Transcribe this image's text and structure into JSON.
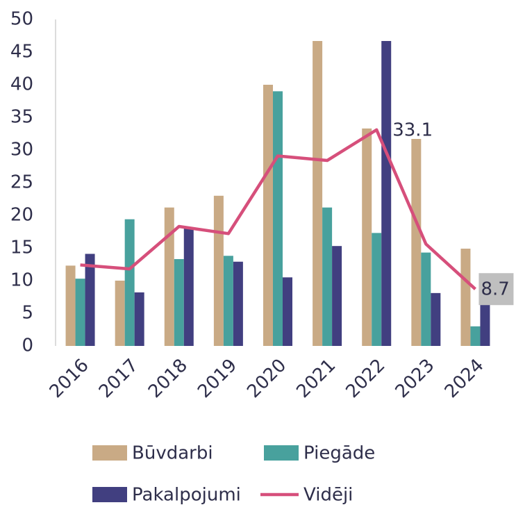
{
  "chart_data": {
    "type": "bar",
    "categories": [
      "2016",
      "2017",
      "2018",
      "2019",
      "2020",
      "2021",
      "2022",
      "2023",
      "2024"
    ],
    "series": [
      {
        "name": "Būvdarbi",
        "color": "#c9aa85",
        "values": [
          12.3,
          10.0,
          21.2,
          23.0,
          40.0,
          46.7,
          33.3,
          31.7,
          14.9
        ]
      },
      {
        "name": "Piegāde",
        "color": "#48a19d",
        "values": [
          10.3,
          19.4,
          13.3,
          13.8,
          39.0,
          21.2,
          17.3,
          14.3,
          3.0
        ]
      },
      {
        "name": "Pakalpojumi",
        "color": "#413f80",
        "values": [
          14.1,
          8.2,
          18.1,
          12.9,
          10.5,
          15.3,
          46.7,
          8.1,
          9.7
        ]
      },
      {
        "name": "Vidēji",
        "type": "line",
        "color": "#d64f7b",
        "values": [
          12.4,
          11.8,
          18.3,
          17.2,
          29.1,
          28.4,
          33.1,
          15.6,
          8.7
        ],
        "value_labels": [
          null,
          null,
          null,
          null,
          null,
          null,
          "33.1",
          null,
          "8.7"
        ]
      }
    ],
    "ylim": [
      0,
      50
    ],
    "yticks": [
      0,
      5,
      10,
      15,
      20,
      25,
      30,
      35,
      40,
      45,
      50
    ],
    "grid": false
  }
}
